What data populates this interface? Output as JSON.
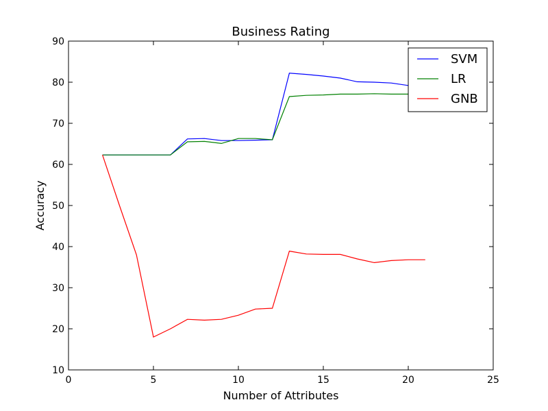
{
  "chart_data": {
    "type": "line",
    "title": "Business Rating",
    "xlabel": "Number of Attributes",
    "ylabel": "Accuracy",
    "xlim": [
      0,
      25
    ],
    "ylim": [
      10,
      90
    ],
    "xticks": [
      "0",
      "5",
      "10",
      "15",
      "20",
      "25"
    ],
    "yticks": [
      "10",
      "20",
      "30",
      "40",
      "50",
      "60",
      "70",
      "80",
      "90"
    ],
    "grid": false,
    "legend_position": "top-right",
    "x": [
      2,
      3,
      4,
      5,
      6,
      7,
      8,
      9,
      10,
      11,
      12,
      13,
      14,
      15,
      16,
      17,
      18,
      19,
      20,
      21
    ],
    "series": [
      {
        "name": "SVM",
        "color": "#0000ff",
        "values": [
          62.3,
          62.3,
          62.3,
          62.3,
          62.3,
          66.2,
          66.3,
          65.8,
          65.8,
          65.9,
          66.0,
          82.2,
          81.9,
          81.5,
          81.0,
          80.1,
          80.0,
          79.8,
          79.2,
          79.2
        ]
      },
      {
        "name": "LR",
        "color": "#008000",
        "values": [
          62.3,
          62.3,
          62.3,
          62.3,
          62.3,
          65.5,
          65.6,
          65.1,
          66.3,
          66.3,
          66.0,
          76.5,
          76.8,
          76.9,
          77.1,
          77.1,
          77.2,
          77.1,
          77.1,
          77.1
        ]
      },
      {
        "name": "GNB",
        "color": "#ff0000",
        "values": [
          62.3,
          50.0,
          38.0,
          18.0,
          20.0,
          22.3,
          22.1,
          22.3,
          23.3,
          24.8,
          25.0,
          38.9,
          38.2,
          38.1,
          38.1,
          37.0,
          36.1,
          36.6,
          36.8,
          36.8
        ]
      }
    ]
  }
}
